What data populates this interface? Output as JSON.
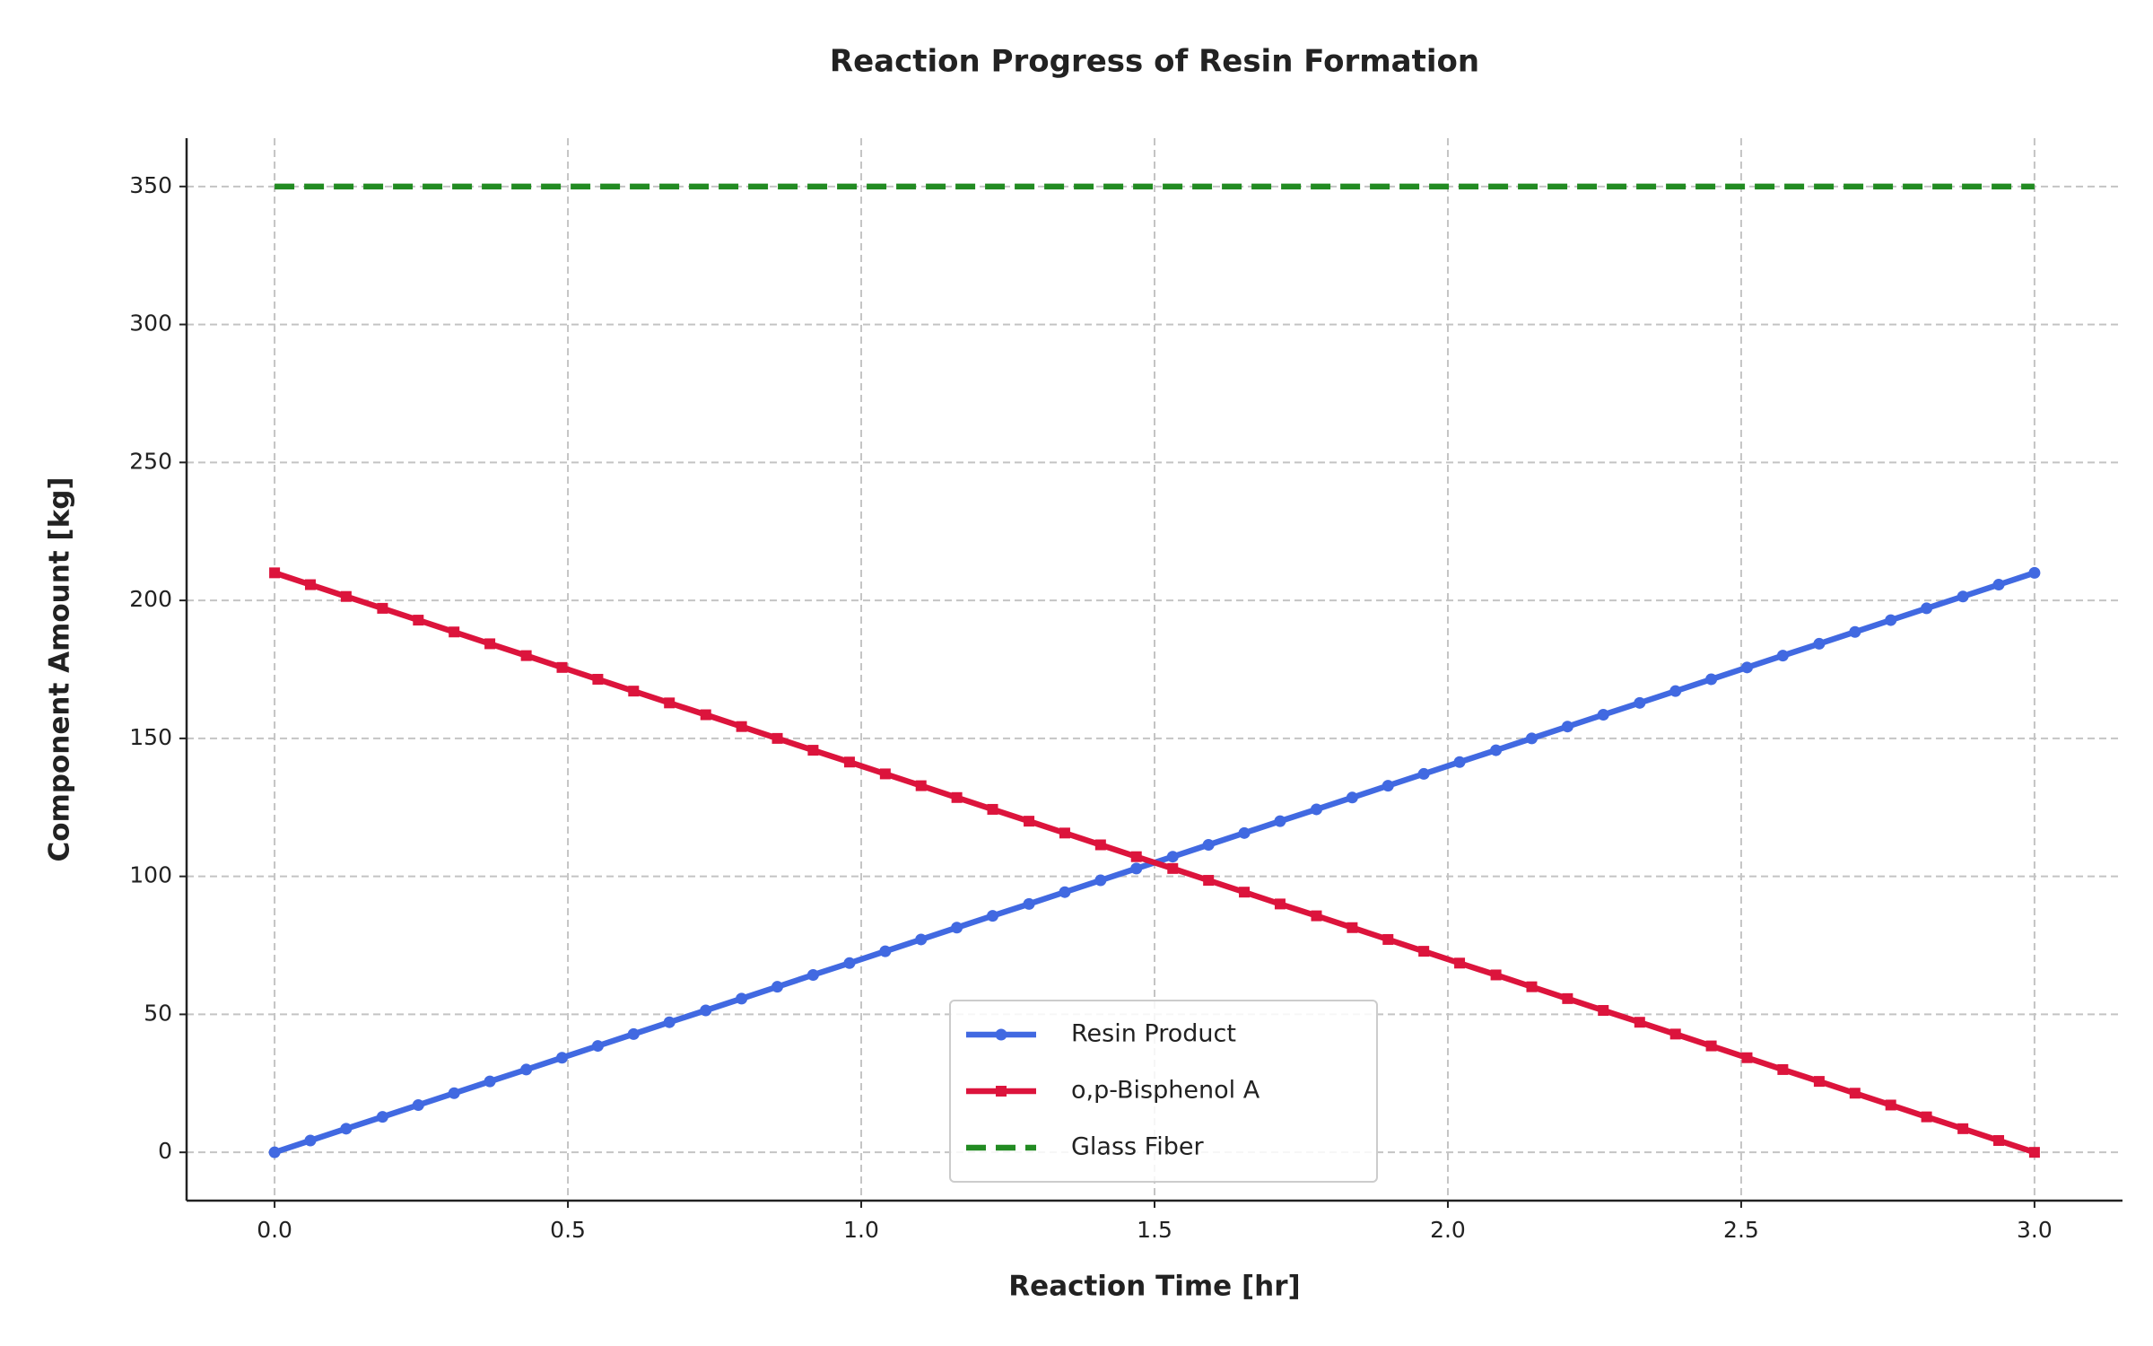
{
  "chart_data": {
    "type": "line",
    "title": "Reaction Progress of Resin Formation",
    "x_label": "Reaction Time [hr]",
    "y_label": "Component Amount [kg]",
    "x": [
      0,
      0.061,
      0.122,
      0.184,
      0.245,
      0.306,
      0.367,
      0.429,
      0.49,
      0.551,
      0.612,
      0.673,
      0.735,
      0.796,
      0.857,
      0.918,
      0.98,
      1.041,
      1.102,
      1.163,
      1.224,
      1.286,
      1.347,
      1.408,
      1.469,
      1.531,
      1.592,
      1.653,
      1.714,
      1.776,
      1.837,
      1.898,
      1.959,
      2.02,
      2.082,
      2.143,
      2.204,
      2.265,
      2.327,
      2.388,
      2.449,
      2.51,
      2.571,
      2.633,
      2.694,
      2.755,
      2.816,
      2.878,
      2.939,
      3
    ],
    "series": [
      {
        "name": "Resin Product",
        "color": "#4169e1",
        "marker": "circle",
        "dash": false,
        "values": [
          0,
          4.29,
          8.57,
          12.86,
          17.14,
          21.43,
          25.71,
          30,
          34.29,
          38.57,
          42.86,
          47.14,
          51.43,
          55.71,
          60,
          64.29,
          68.57,
          72.86,
          77.14,
          81.43,
          85.71,
          90,
          94.29,
          98.57,
          102.86,
          107.14,
          111.43,
          115.71,
          120,
          124.29,
          128.57,
          132.86,
          137.14,
          141.43,
          145.71,
          150,
          154.29,
          158.57,
          162.86,
          167.14,
          171.43,
          175.71,
          180,
          184.29,
          188.57,
          192.86,
          197.14,
          201.43,
          205.71,
          210
        ]
      },
      {
        "name": "o,p-Bisphenol A",
        "color": "#dc143c",
        "marker": "square",
        "dash": false,
        "values": [
          210,
          205.71,
          201.43,
          197.14,
          192.86,
          188.57,
          184.29,
          180,
          175.71,
          171.43,
          167.14,
          162.86,
          158.57,
          154.29,
          150,
          145.71,
          141.43,
          137.14,
          132.86,
          128.57,
          124.29,
          120,
          115.71,
          111.43,
          107.14,
          102.86,
          98.57,
          94.29,
          90,
          85.71,
          81.43,
          77.14,
          72.86,
          68.57,
          64.29,
          60,
          55.71,
          51.43,
          47.14,
          42.86,
          38.57,
          34.29,
          30,
          25.71,
          21.43,
          17.14,
          12.86,
          8.57,
          4.29,
          0
        ]
      },
      {
        "name": "Glass Fiber",
        "color": "#228b22",
        "marker": null,
        "dash": true,
        "values": [
          350,
          350,
          350,
          350,
          350,
          350,
          350,
          350,
          350,
          350,
          350,
          350,
          350,
          350,
          350,
          350,
          350,
          350,
          350,
          350,
          350,
          350,
          350,
          350,
          350,
          350,
          350,
          350,
          350,
          350,
          350,
          350,
          350,
          350,
          350,
          350,
          350,
          350,
          350,
          350,
          350,
          350,
          350,
          350,
          350,
          350,
          350,
          350,
          350,
          350
        ]
      }
    ],
    "xlim": [
      -0.15,
      3.15
    ],
    "ylim": [
      -17.5,
      367.5
    ],
    "xticks": [
      {
        "value": 0,
        "label": "0.0"
      },
      0.5,
      {
        "value": 1,
        "label": "1.0"
      },
      1.5,
      {
        "value": 2,
        "label": "2.0"
      },
      2.5,
      {
        "value": 3,
        "label": "3.0"
      }
    ],
    "yticks": [
      0,
      50,
      100,
      150,
      200,
      250,
      300,
      350
    ],
    "grid": true,
    "legend": "lower center"
  }
}
